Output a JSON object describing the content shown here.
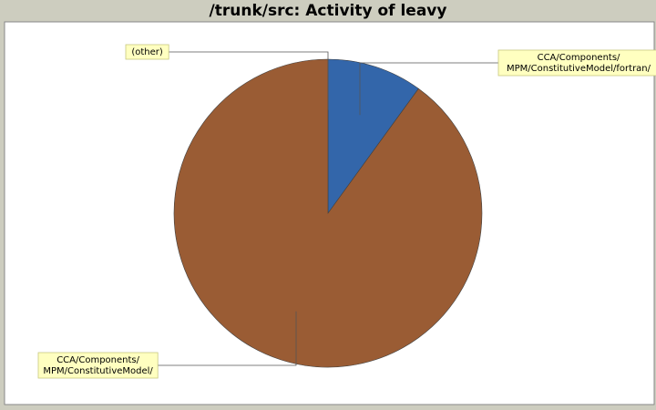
{
  "title": "/trunk/src: Activity of leavy",
  "chart_data": {
    "type": "pie",
    "title": "/trunk/src: Activity of leavy",
    "start_angle_deg": 90,
    "direction": "clockwise",
    "slices": [
      {
        "label": "(other)",
        "lines": [
          "(other)"
        ],
        "value": 0.0,
        "color": "#ffffff"
      },
      {
        "label": "CCA/Components/MPM/ConstitutiveModel/fortran/",
        "lines": [
          "CCA/Components/",
          "MPM/ConstitutiveModel/fortran/"
        ],
        "value": 10.0,
        "color": "#3366aa"
      },
      {
        "label": "CCA/Components/MPM/ConstitutiveModel/",
        "lines": [
          "CCA/Components/",
          "MPM/ConstitutiveModel/"
        ],
        "value": 90.0,
        "color": "#9a5c34"
      }
    ],
    "legend": "none",
    "label_style": "callout-boxes"
  },
  "colors": {
    "background": "#cdcdbf",
    "plot_background": "#ffffff",
    "label_box": "#ffffc0",
    "label_border": "#c8c880"
  }
}
